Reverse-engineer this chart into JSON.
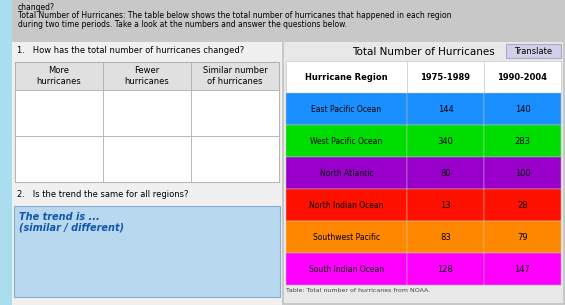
{
  "title_text": "Total Number of Hurricanes",
  "header_region": "Hurricane Region",
  "header_1975": "1975-1989",
  "header_1990": "1990-2004",
  "regions": [
    "East Pacific Ocean",
    "West Pacific Ocean",
    "North Atlantic",
    "North Indian Ocean",
    "Southwest Pacific",
    "South Indian Ocean"
  ],
  "values_1975": [
    144,
    340,
    80,
    13,
    83,
    128
  ],
  "values_1990": [
    140,
    283,
    100,
    28,
    79,
    147
  ],
  "row_colors": [
    "#1a8fff",
    "#00dd00",
    "#9900cc",
    "#ff1100",
    "#ff8800",
    "#ff00ff"
  ],
  "q1_text": "1.   How has the total number of hurricanes changed?",
  "left_col1": "More\nhurricanes",
  "left_col2": "Fewer\nhurricanes",
  "left_col3": "Similar number\nof hurricanes",
  "q2_text": "2.   Is the trend the same for all regions?",
  "trend_line1": "The trend is ...",
  "trend_line2": "(similar / different)",
  "translate_text": "Translate",
  "top_line1": "changed?",
  "top_line2": "Total Number of Hurricanes: The table below shows the total number of hurricanes that happened in each region",
  "top_line3": "during two time periods. Take a look at the numbers and answer the questions below.",
  "footnote": "Table: Total number of hurricanes from NOAA.",
  "bg_color": "#c8c8c8",
  "left_panel_bg": "#f0f0f0",
  "right_panel_bg": "#e8e8e8",
  "table_header_bg": "#f8f8f8",
  "trend_box_color": "#b8d8f0",
  "left_table_bg": "#ffffff",
  "translate_bg": "#d0d0e8"
}
